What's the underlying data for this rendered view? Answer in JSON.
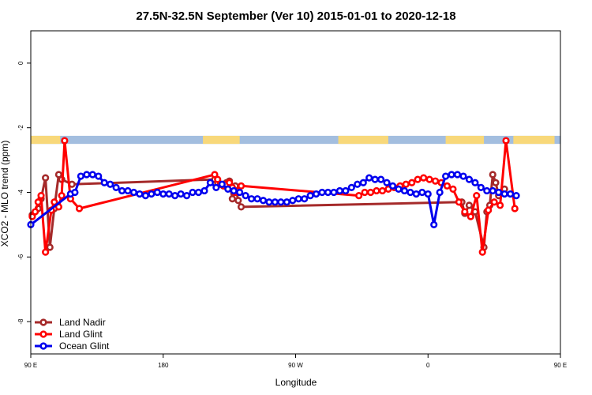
{
  "chart_data": {
    "type": "line",
    "title": "27.5N-32.5N September (Ver 10)   2015-01-01 to 2020-12-18",
    "xlabel": "Longitude",
    "ylabel": "XCO2 - MLO trend (ppm)",
    "xlim": [
      90,
      450
    ],
    "ylim": [
      -9,
      1
    ],
    "y_ticks": [
      0,
      -2,
      -4,
      -6,
      -8
    ],
    "x_ticks": [
      {
        "value": 90,
        "label": "90 E"
      },
      {
        "value": 180,
        "label": "180"
      },
      {
        "value": 270,
        "label": "90 W"
      },
      {
        "value": 360,
        "label": "0"
      },
      {
        "value": 450,
        "label": "90 E"
      }
    ],
    "grid": false,
    "legend_position": "bottom-left",
    "map_strip": {
      "y_range": [
        -2.5,
        -2.25
      ],
      "ocean_color": "#a3bedf",
      "land_color": "#f8d87a",
      "land_spans": [
        [
          88,
          110
        ],
        [
          207,
          232
        ],
        [
          299,
          333
        ],
        [
          372,
          398
        ],
        [
          418,
          446
        ]
      ]
    },
    "series": [
      {
        "name": "Land Nadir",
        "color": "#a52a2a",
        "x": [
          91,
          95,
          97,
          100,
          103,
          106,
          109,
          111,
          118,
          215,
          217,
          219,
          221,
          223,
          225,
          227,
          229,
          231,
          233,
          383,
          385,
          388,
          392,
          398,
          400,
          402,
          404,
          406,
          408,
          410,
          412
        ],
        "y": [
          -4.7,
          -4.5,
          -4.2,
          -3.55,
          -5.7,
          -4.5,
          -3.45,
          -3.6,
          -3.75,
          -3.6,
          -3.7,
          -3.75,
          -3.8,
          -3.7,
          -3.65,
          -4.2,
          -3.8,
          -4.25,
          -4.45,
          -4.3,
          -4.65,
          -4.4,
          -4.6,
          -5.7,
          -4.6,
          -4.4,
          -3.45,
          -3.7,
          -4.1,
          -4.0,
          -3.9
        ]
      },
      {
        "name": "Land Glint",
        "color": "#ff0000",
        "x": [
          91,
          93,
          95,
          97,
          100,
          104,
          106,
          109,
          111,
          113,
          117,
          123,
          215,
          217,
          219,
          221,
          223,
          225,
          227,
          229,
          231,
          233,
          313,
          317,
          321,
          325,
          329,
          333,
          337,
          341,
          345,
          349,
          353,
          357,
          361,
          365,
          369,
          373,
          377,
          381,
          385,
          389,
          393,
          397,
          401,
          405,
          409,
          413,
          419
        ],
        "y": [
          -4.75,
          -4.6,
          -4.3,
          -4.1,
          -5.85,
          -4.55,
          -4.3,
          -4.45,
          -4.1,
          -2.4,
          -4.2,
          -4.5,
          -3.45,
          -3.6,
          -3.75,
          -3.8,
          -3.75,
          -3.7,
          -3.85,
          -4.0,
          -3.95,
          -3.8,
          -4.1,
          -4.0,
          -4.0,
          -3.95,
          -3.95,
          -3.9,
          -3.85,
          -3.8,
          -3.75,
          -3.7,
          -3.6,
          -3.55,
          -3.6,
          -3.65,
          -3.7,
          -3.8,
          -3.9,
          -4.3,
          -4.6,
          -4.75,
          -4.1,
          -5.85,
          -4.55,
          -4.3,
          -4.4,
          -2.4,
          -4.5
        ]
      },
      {
        "name": "Ocean Glint",
        "color": "#0000ee",
        "x": [
          90,
          117,
          120,
          124,
          128,
          132,
          136,
          140,
          144,
          148,
          152,
          156,
          160,
          164,
          168,
          172,
          176,
          180,
          184,
          188,
          192,
          196,
          200,
          204,
          208,
          212,
          216,
          220,
          224,
          228,
          232,
          236,
          240,
          244,
          248,
          252,
          256,
          260,
          264,
          268,
          272,
          276,
          280,
          284,
          288,
          292,
          296,
          300,
          304,
          308,
          312,
          316,
          320,
          324,
          328,
          332,
          336,
          340,
          344,
          348,
          352,
          356,
          360,
          364,
          368,
          372,
          376,
          380,
          384,
          388,
          392,
          396,
          400,
          404,
          408,
          412,
          416,
          420
        ],
        "y": [
          -5.0,
          -4.05,
          -4.0,
          -3.5,
          -3.45,
          -3.45,
          -3.5,
          -3.7,
          -3.75,
          -3.85,
          -3.95,
          -3.95,
          -4.0,
          -4.05,
          -4.1,
          -4.05,
          -4.0,
          -4.05,
          -4.05,
          -4.1,
          -4.05,
          -4.1,
          -4.0,
          -4.0,
          -3.95,
          -3.7,
          -3.85,
          -3.75,
          -3.9,
          -3.95,
          -4.0,
          -4.1,
          -4.2,
          -4.2,
          -4.25,
          -4.3,
          -4.3,
          -4.3,
          -4.3,
          -4.25,
          -4.2,
          -4.2,
          -4.1,
          -4.05,
          -4.0,
          -4.0,
          -4.0,
          -3.95,
          -3.95,
          -3.85,
          -3.75,
          -3.7,
          -3.55,
          -3.6,
          -3.6,
          -3.7,
          -3.8,
          -3.9,
          -3.95,
          -4.0,
          -4.05,
          -4.0,
          -4.05,
          -5.0,
          -4.0,
          -3.5,
          -3.45,
          -3.45,
          -3.5,
          -3.6,
          -3.7,
          -3.85,
          -3.95,
          -3.95,
          -4.0,
          -4.05,
          -4.05,
          -4.1
        ]
      }
    ]
  }
}
